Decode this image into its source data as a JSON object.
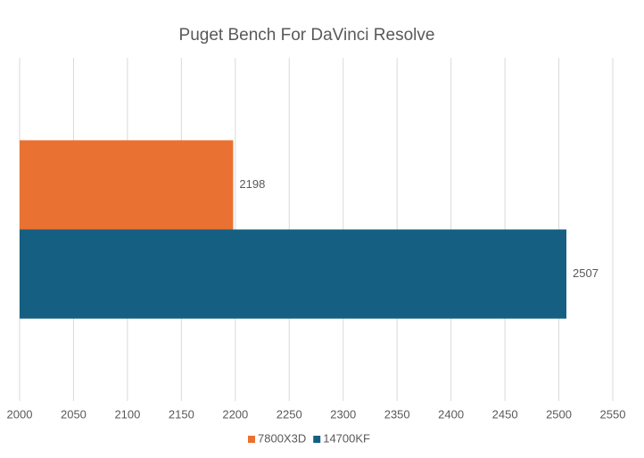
{
  "chart_data": {
    "type": "bar",
    "orientation": "horizontal",
    "title": "Puget Bench For DaVinci Resolve",
    "categories": [
      null
    ],
    "series": [
      {
        "name": "7800X3D",
        "color": "#e97132",
        "values": [
          2198
        ]
      },
      {
        "name": "14700KF",
        "color": "#156082",
        "values": [
          2507
        ]
      }
    ],
    "xlim": [
      2000,
      2550
    ],
    "xticks": [
      2000,
      2050,
      2100,
      2150,
      2200,
      2250,
      2300,
      2350,
      2400,
      2450,
      2500,
      2550
    ],
    "grid": true,
    "legend": "bottom"
  }
}
